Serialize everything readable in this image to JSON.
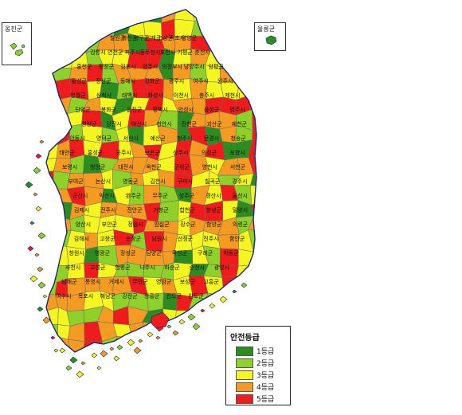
{
  "map": {
    "legend": {
      "title": "안전등급",
      "items": [
        {
          "label": "1등급",
          "color": "#2e8b1f"
        },
        {
          "label": "2등급",
          "color": "#8fd12a"
        },
        {
          "label": "3등급",
          "color": "#f5f524"
        },
        {
          "label": "4등급",
          "color": "#f59a23"
        },
        {
          "label": "5등급",
          "color": "#ee1c1c"
        }
      ]
    },
    "insets": {
      "ongjin": "옹진군",
      "ulleung": "울릉군"
    },
    "region_labels": [
      "철원군",
      "화천군",
      "양구군",
      "인제군",
      "고성군",
      "속초시",
      "양양군",
      "강릉시",
      "연천군",
      "파주시",
      "동두천시",
      "포천시",
      "가평군",
      "춘천시",
      "홍천군",
      "평창군",
      "김포시",
      "양주시",
      "의정부시",
      "남양주시",
      "양평군",
      "횡성군",
      "정선군",
      "동해시",
      "강화군",
      "광주시",
      "여주시",
      "원주시",
      "영월군",
      "삼척시",
      "태백시",
      "화성시",
      "이천시",
      "충주시",
      "제천시",
      "단양군",
      "봉화군",
      "울진군",
      "평택시",
      "안성시",
      "음성군",
      "영주시",
      "영양군",
      "당진시",
      "아산시",
      "천안시",
      "진천군",
      "괴산군",
      "예천군",
      "안동시",
      "영덕군",
      "서산시",
      "예산군",
      "청주시",
      "문경시",
      "청송군",
      "태안군",
      "홍성군",
      "공주시",
      "보은군",
      "상주시",
      "의성군",
      "포항시",
      "보령시",
      "청양군",
      "대전시",
      "옥천군",
      "군위군",
      "영천시",
      "서천군",
      "부여군",
      "논산시",
      "영동군",
      "김천시",
      "구미시",
      "칠곡군",
      "경주시",
      "군산시",
      "익산시",
      "완주군",
      "무주군",
      "성주군",
      "경산시",
      "울산시",
      "김제시",
      "전주시",
      "진안군",
      "거창군",
      "합천군",
      "창녕군",
      "밀양시",
      "양산시",
      "부안군",
      "정읍시",
      "임실군",
      "장수군",
      "함양군",
      "의령군",
      "김해시",
      "고창군",
      "순창군",
      "남원시",
      "산청군",
      "진주시",
      "함안군",
      "창원시",
      "영광군",
      "장성군",
      "담양군",
      "곡성군",
      "구례군",
      "하동군",
      "사천시",
      "고성군",
      "함평군",
      "나주시",
      "화순군",
      "순천시",
      "광양시",
      "남해군",
      "통영시",
      "거제시",
      "무안군",
      "영암군",
      "보성군",
      "고흥군",
      "여수시",
      "목포시",
      "해남군",
      "강진군",
      "장흥군",
      "진도군",
      "완도군"
    ]
  }
}
